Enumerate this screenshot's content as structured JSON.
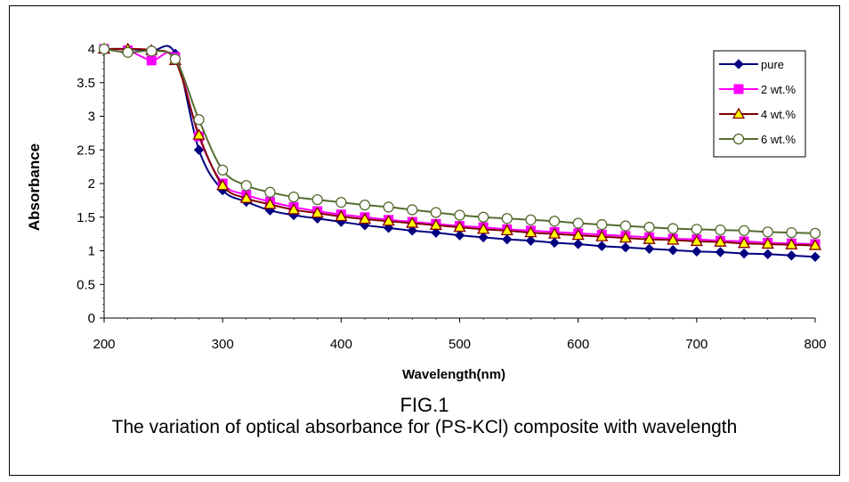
{
  "chart_data": {
    "type": "line",
    "title": "",
    "xlabel": "Wavelength(nm)",
    "ylabel": "Absorbance",
    "xlim": [
      200,
      800
    ],
    "ylim": [
      0,
      4
    ],
    "xticks": [
      "200",
      "300",
      "400",
      "500",
      "600",
      "700",
      "800"
    ],
    "yticks": [
      "0",
      "0.5",
      "1",
      "1.5",
      "2",
      "2.5",
      "3",
      "3.5",
      "4"
    ],
    "legend_position": "top-right",
    "grid": false,
    "x": [
      200,
      220,
      240,
      260,
      280,
      300,
      320,
      340,
      360,
      380,
      400,
      420,
      440,
      460,
      480,
      500,
      520,
      540,
      560,
      580,
      600,
      620,
      640,
      660,
      680,
      700,
      720,
      740,
      760,
      780,
      800
    ],
    "series": [
      {
        "name": "pure",
        "color": "#000080",
        "marker": "diamond",
        "values": [
          4.0,
          4.0,
          3.97,
          3.93,
          2.5,
          1.9,
          1.73,
          1.6,
          1.53,
          1.48,
          1.43,
          1.38,
          1.34,
          1.3,
          1.27,
          1.23,
          1.2,
          1.17,
          1.15,
          1.12,
          1.1,
          1.07,
          1.05,
          1.03,
          1.01,
          0.99,
          0.98,
          0.96,
          0.95,
          0.93,
          0.91
        ]
      },
      {
        "name": "2 wt.%",
        "color": "#ff00ff",
        "marker": "square",
        "values": [
          4.0,
          3.98,
          3.83,
          3.88,
          2.7,
          2.0,
          1.83,
          1.73,
          1.65,
          1.59,
          1.54,
          1.5,
          1.46,
          1.43,
          1.4,
          1.37,
          1.35,
          1.32,
          1.3,
          1.28,
          1.26,
          1.24,
          1.22,
          1.2,
          1.18,
          1.17,
          1.15,
          1.14,
          1.12,
          1.11,
          1.1
        ]
      },
      {
        "name": "4 wt.%",
        "color": "#800000",
        "marker": "triangle",
        "values": [
          4.0,
          4.0,
          3.98,
          3.83,
          2.72,
          1.97,
          1.78,
          1.69,
          1.61,
          1.56,
          1.51,
          1.47,
          1.44,
          1.41,
          1.38,
          1.35,
          1.32,
          1.3,
          1.27,
          1.25,
          1.23,
          1.21,
          1.19,
          1.17,
          1.16,
          1.14,
          1.13,
          1.11,
          1.1,
          1.09,
          1.08
        ]
      },
      {
        "name": "6 wt.%",
        "color": "#556b2f",
        "marker": "circle",
        "values": [
          4.0,
          3.95,
          3.97,
          3.85,
          2.95,
          2.2,
          1.97,
          1.87,
          1.8,
          1.76,
          1.72,
          1.68,
          1.65,
          1.61,
          1.57,
          1.53,
          1.5,
          1.48,
          1.46,
          1.44,
          1.41,
          1.39,
          1.37,
          1.35,
          1.33,
          1.32,
          1.31,
          1.3,
          1.28,
          1.27,
          1.26
        ]
      }
    ]
  },
  "caption": {
    "figure_label": "FIG.1",
    "text": "The variation of optical absorbance for (PS-KCl) composite with wavelength"
  }
}
